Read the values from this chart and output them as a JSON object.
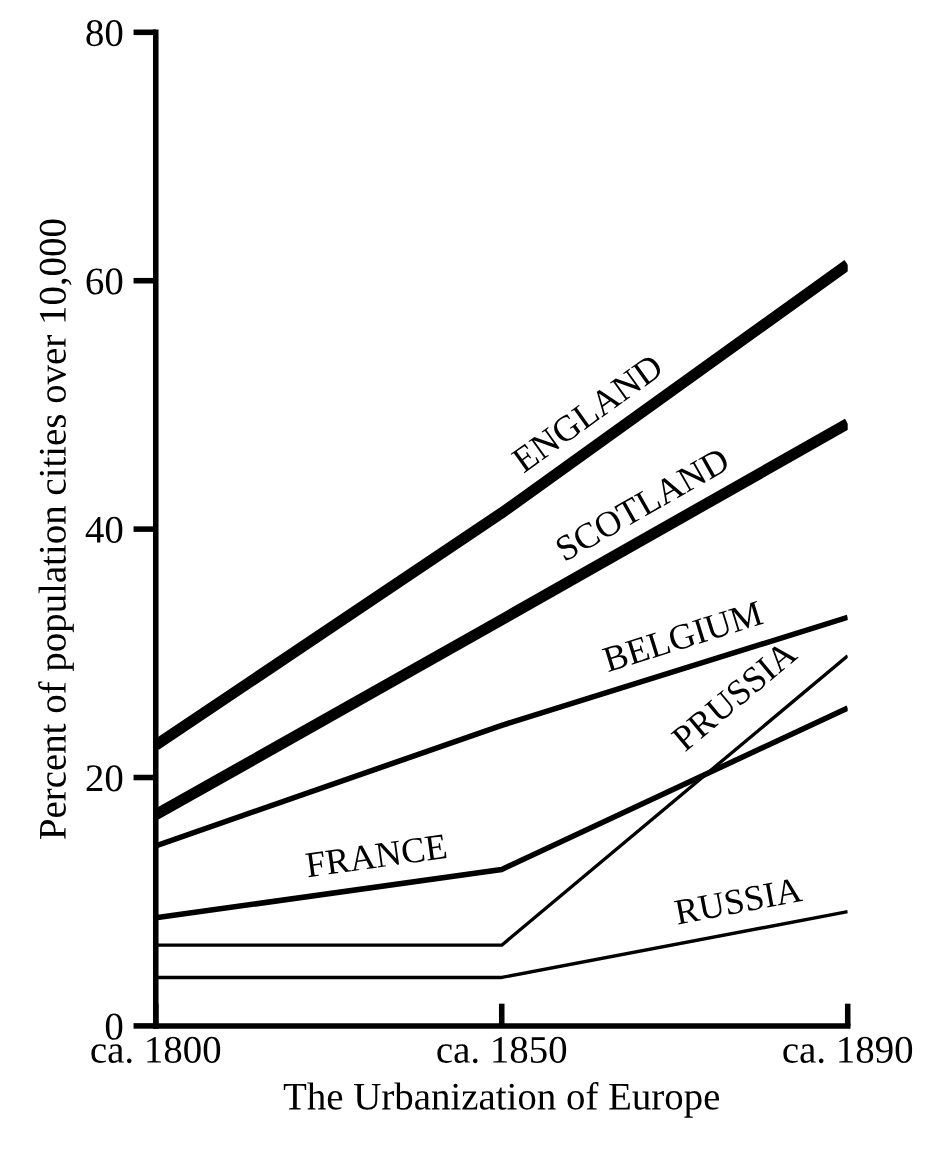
{
  "chart_data": {
    "type": "line",
    "xlabel": "The Urbanization of Europe",
    "ylabel": "Percent of population cities over 10,000",
    "categories": [
      "ca. 1800",
      "ca. 1850",
      "ca. 1890"
    ],
    "series": [
      {
        "name": "ENGLAND",
        "color": "#000000",
        "values": [
          22.6,
          41.3,
          61.3
        ]
      },
      {
        "name": "SCOTLAND",
        "color": "#000000",
        "values": [
          17,
          32.7,
          48.5
        ]
      },
      {
        "name": "BELGIUM",
        "color": "#000000",
        "values": [
          14.5,
          24.2,
          32.9
        ]
      },
      {
        "name": "FRANCE",
        "color": "#000000",
        "values": [
          8.7,
          12.6,
          25.6
        ]
      },
      {
        "name": "PRUSSIA",
        "color": "#000000",
        "values": [
          6.5,
          6.5,
          29.8
        ]
      },
      {
        "name": "RUSSIA",
        "color": "#000000",
        "values": [
          3.9,
          3.9,
          9.2
        ]
      }
    ],
    "ylim": [
      0,
      80
    ],
    "yticks": [
      0,
      20,
      40,
      60,
      80
    ],
    "grid": false,
    "legend": false,
    "marker": "none",
    "line_style": "solid"
  }
}
